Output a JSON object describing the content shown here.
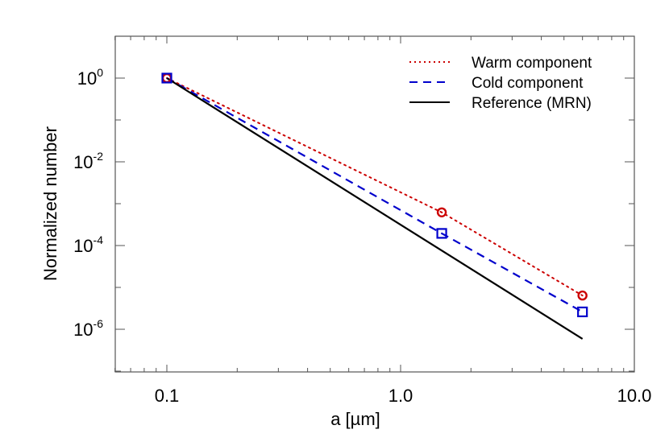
{
  "chart_data": {
    "type": "line",
    "title": "",
    "xlabel": "a [µm]",
    "ylabel": "Normalized number",
    "xscale": "log",
    "yscale": "log",
    "xlim": [
      0.06,
      10.0
    ],
    "ylim": [
      1e-07,
      10
    ],
    "xticks": [
      0.1,
      1.0,
      10.0
    ],
    "xtick_labels": [
      "0.1",
      "1.0",
      "10.0"
    ],
    "yticks": [
      1,
      0.01,
      0.0001,
      1e-06
    ],
    "ytick_labels": [
      {
        "base": "10",
        "exp": "0"
      },
      {
        "base": "10",
        "exp": "-2"
      },
      {
        "base": "10",
        "exp": "-4"
      },
      {
        "base": "10",
        "exp": "-6"
      }
    ],
    "grid": false,
    "legend_position": "upper right",
    "series": [
      {
        "name": "Warm component",
        "color": "#cc0000",
        "style": "dotted",
        "marker": "circle",
        "x": [
          0.1,
          1.5,
          6.0
        ],
        "y": [
          1.0,
          0.00062,
          6.4e-06
        ]
      },
      {
        "name": "Cold component",
        "color": "#0000cc",
        "style": "dashed",
        "marker": "square",
        "x": [
          0.1,
          1.5,
          6.0
        ],
        "y": [
          1.0,
          0.000195,
          2.6e-06
        ]
      },
      {
        "name": "Reference (MRN)",
        "color": "#000000",
        "style": "solid",
        "marker": "none",
        "x": [
          0.1,
          6.0
        ],
        "y": [
          1.0,
          5.9e-07
        ]
      }
    ]
  }
}
